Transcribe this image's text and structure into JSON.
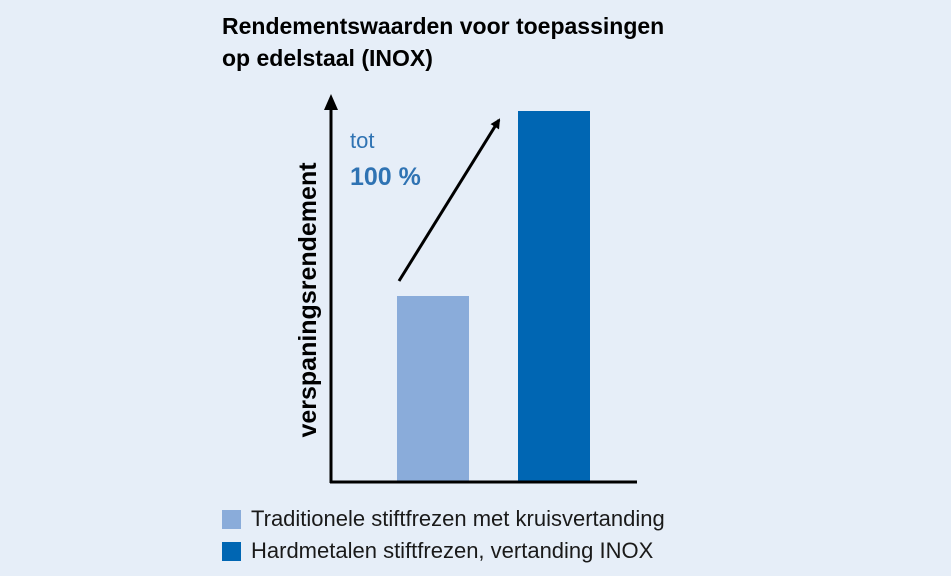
{
  "title": {
    "line1": "Rendementswaarden voor toepassingen",
    "line2": "op edelstaal (INOX)"
  },
  "annotation": {
    "line1": "tot",
    "line2": "100 %"
  },
  "colors": {
    "background": "#e6eef8",
    "series_traditional": "#8aacda",
    "series_hardmetal": "#0066b3",
    "annotation": "#2f73b3",
    "axis": "#000000"
  },
  "chart_data": {
    "type": "bar",
    "title": "Rendementswaarden voor toepassingen op edelstaal (INOX)",
    "xlabel": "",
    "ylabel": "verspaningsrendement",
    "ylim": [
      0,
      115
    ],
    "y_ticks_shown": false,
    "grid": false,
    "legend_position": "bottom-left",
    "categories": [
      "Traditionele stiftfrezen met kruisvertanding",
      "Hardmetalen stiftfrezen, vertanding INOX"
    ],
    "values": [
      50,
      100
    ],
    "colors": [
      "#8aacda",
      "#0066b3"
    ],
    "annotations": [
      {
        "text": "tot 100 %",
        "type": "arrow",
        "from_category": 0,
        "to_category": 1
      }
    ]
  },
  "legend": {
    "items": [
      {
        "label": "Traditionele stiftfrezen met kruisvertanding",
        "color": "#8aacda"
      },
      {
        "label": "Hardmetalen stiftfrezen, vertanding INOX",
        "color": "#0066b3"
      }
    ]
  }
}
